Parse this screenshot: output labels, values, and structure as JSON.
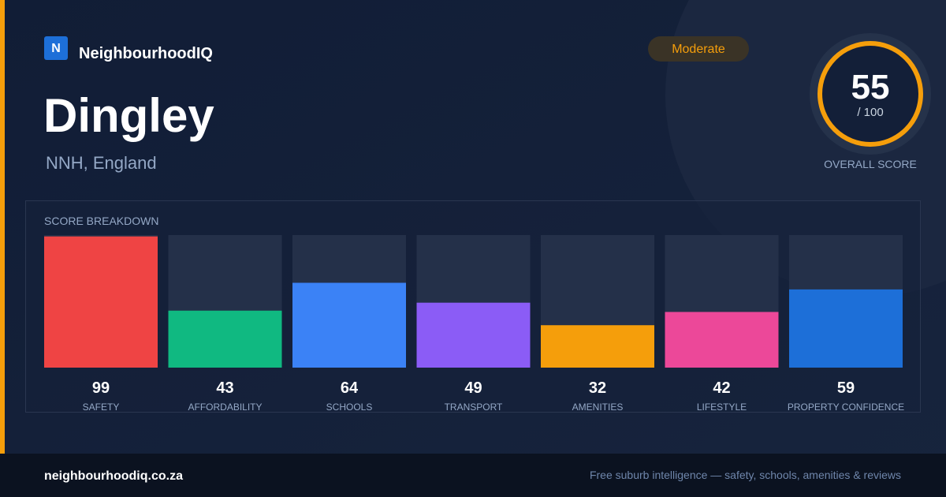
{
  "brand": {
    "logo": "N",
    "name": "NeighbourhoodIQ"
  },
  "place": {
    "name": "Dingley",
    "region": "NNH, England"
  },
  "badge": "Moderate",
  "overall": {
    "score": 55,
    "out_of": "/ 100",
    "label": "OVERALL SCORE"
  },
  "chart_data": {
    "type": "bar",
    "title": "SCORE BREAKDOWN",
    "categories": [
      "SAFETY",
      "AFFORDABILITY",
      "SCHOOLS",
      "TRANSPORT",
      "AMENITIES",
      "LIFESTYLE",
      "PROPERTY CONFIDENCE"
    ],
    "values": [
      99,
      43,
      64,
      49,
      32,
      42,
      59
    ],
    "colors": [
      "#ef4444",
      "#10b981",
      "#3b82f6",
      "#8b5cf6",
      "#f59e0b",
      "#ec4899",
      "#1d6fd8"
    ],
    "ylim": [
      0,
      100
    ]
  },
  "footer": {
    "url": "neighbourhoodiq.co.za",
    "tagline": "Free suburb intelligence — safety, schools, amenities & reviews"
  }
}
